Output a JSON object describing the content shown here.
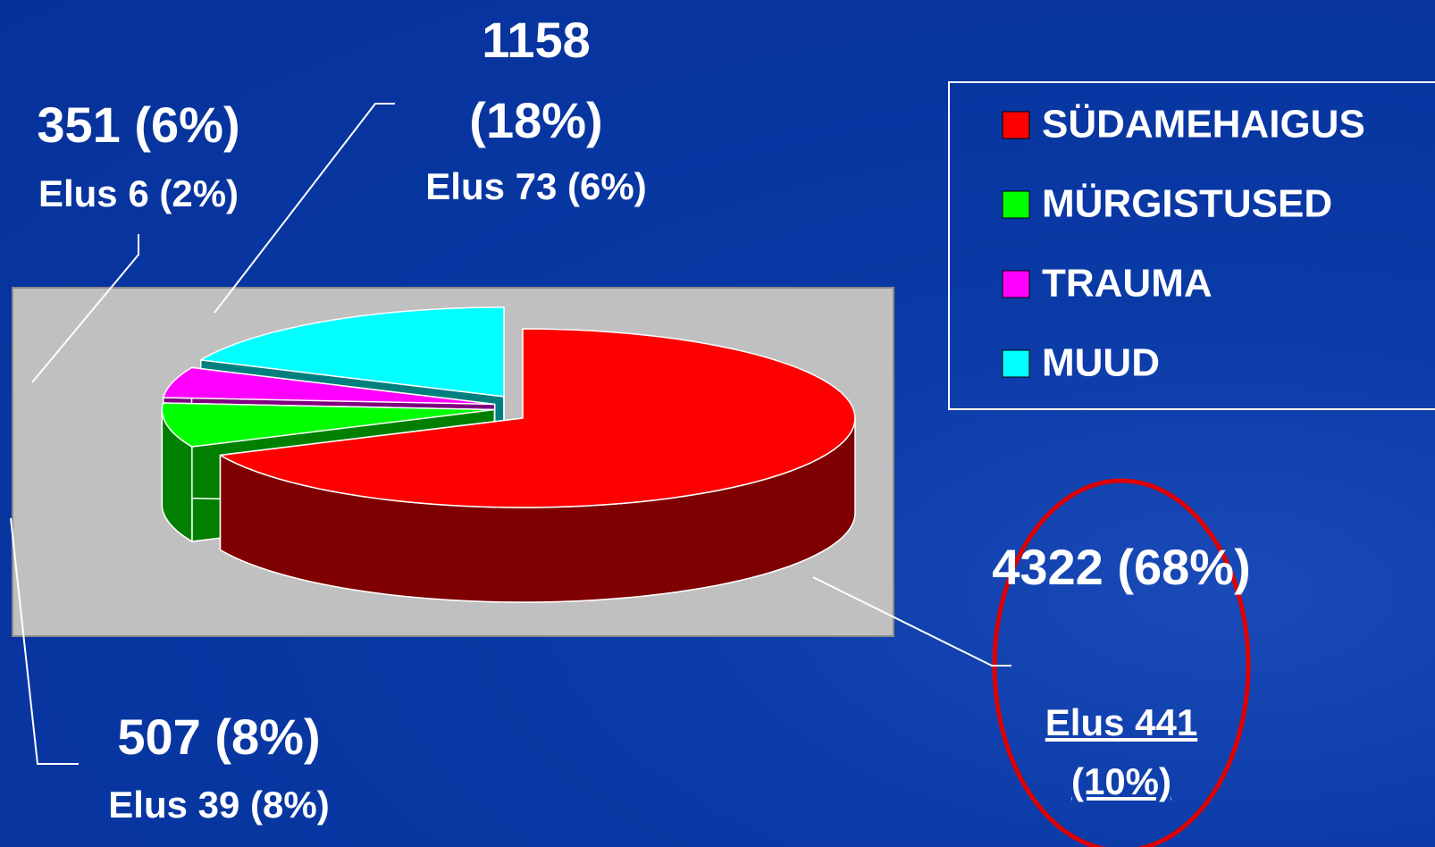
{
  "chart_data": {
    "type": "pie",
    "categories": [
      "SÜDAMEHAIGUS",
      "MÜRGISTUSED",
      "TRAUMA",
      "MUUD"
    ],
    "values": [
      4322,
      507,
      351,
      1158
    ],
    "value_labels": [
      "4322 (68%)",
      "507 (8%)",
      "351 (6%)",
      "1158 (18%)"
    ],
    "sublabels": [
      "Elus 441 (10%)",
      "Elus 39 (8%)",
      "Elus 6 (2%)",
      "Elus 73 (6%)"
    ],
    "colors": [
      "#ff0000",
      "#00ff00",
      "#ff00ff",
      "#00ffff"
    ],
    "legend": "right"
  }
}
